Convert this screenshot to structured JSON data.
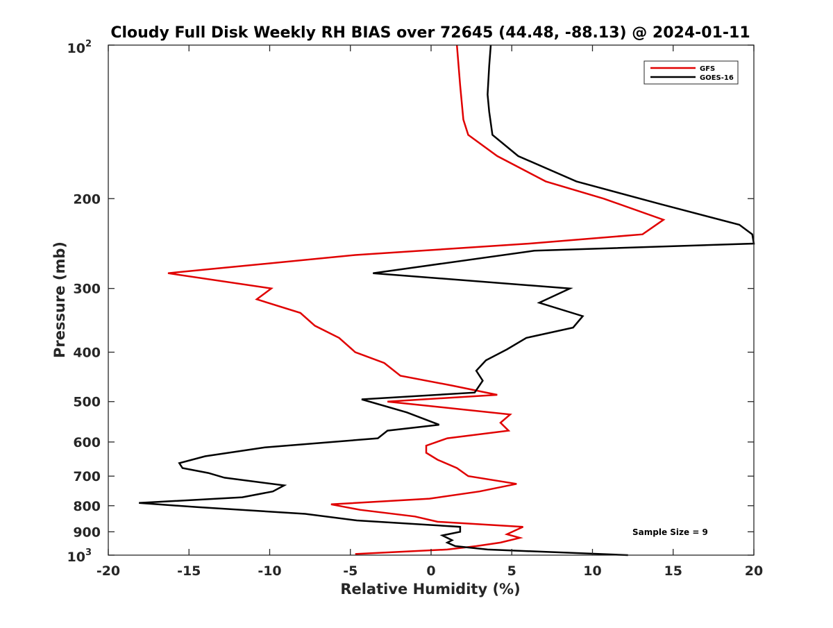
{
  "chart_data": {
    "type": "line",
    "title": "Cloudy Full Disk Weekly RH BIAS over 72645 (44.48, -88.13) @ 2024-01-11",
    "xlabel": "Relative Humidity (%)",
    "ylabel": "Pressure (mb)",
    "xlim": [
      -20,
      20
    ],
    "ylim": [
      100,
      1000
    ],
    "y_scale": "log",
    "y_reversed": true,
    "x_ticks": [
      -20,
      -15,
      -10,
      -5,
      0,
      5,
      10,
      15,
      20
    ],
    "x_tick_labels": [
      "-20",
      "-15",
      "-10",
      "-5",
      "0",
      "5",
      "10",
      "15",
      "20"
    ],
    "y_ticks": [
      200,
      300,
      400,
      500,
      600,
      700,
      800,
      900
    ],
    "y_tick_labels": [
      "200",
      "300",
      "400",
      "500",
      "600",
      "700",
      "800",
      "900"
    ],
    "y_end_labels": {
      "top": {
        "base": "10",
        "exp": "2"
      },
      "bottom": {
        "base": "10",
        "exp": "3"
      }
    },
    "grid": false,
    "legend": "top-right",
    "annotation": "Sample Size = 9",
    "series": [
      {
        "name": "GFS",
        "color": "#e00000",
        "x": [
          1.6,
          1.8,
          2.0,
          2.3,
          4.1,
          7.1,
          10.7,
          14.4,
          13.1,
          6.1,
          -4.7,
          -16.3,
          -9.9,
          -10.8,
          -8.1,
          -7.2,
          -5.7,
          -4.7,
          -2.9,
          -1.9,
          1.3,
          4.1,
          -2.7,
          4.9,
          4.3,
          4.8,
          1.0,
          -0.3,
          -0.3,
          0.4,
          1.6,
          2.3,
          5.3,
          3.0,
          -0.1,
          -6.2,
          -4.4,
          -1.0,
          0.4,
          5.7,
          4.7,
          5.5,
          4.3,
          2.8,
          1.0,
          -4.7
        ],
        "y": [
          100,
          120,
          140,
          150,
          165,
          185,
          200,
          220,
          235,
          245,
          258,
          280,
          300,
          315,
          335,
          355,
          375,
          400,
          420,
          445,
          465,
          485,
          500,
          530,
          550,
          570,
          590,
          610,
          630,
          650,
          675,
          700,
          725,
          750,
          775,
          795,
          815,
          840,
          860,
          880,
          910,
          925,
          945,
          960,
          975,
          995
        ]
      },
      {
        "name": "GOES-16",
        "color": "#000000",
        "x": [
          3.7,
          3.6,
          3.5,
          3.6,
          3.8,
          5.4,
          9.0,
          14.2,
          19.1,
          19.9,
          20.0,
          6.4,
          -3.6,
          8.6,
          6.7,
          9.4,
          8.8,
          5.9,
          4.7,
          3.4,
          2.8,
          3.2,
          2.7,
          -4.3,
          -1.5,
          0.5,
          -2.7,
          -3.3,
          -10.3,
          -14.0,
          -15.6,
          -15.4,
          -13.8,
          -12.8,
          -9.1,
          -9.8,
          -11.7,
          -18.1,
          -14.5,
          -7.8,
          -4.6,
          1.8,
          1.8,
          0.7,
          1.3,
          1.0,
          1.5,
          3.5,
          12.2
        ],
        "y": [
          100,
          110,
          125,
          135,
          150,
          165,
          185,
          205,
          225,
          235,
          245,
          253,
          280,
          300,
          320,
          340,
          358,
          375,
          395,
          415,
          435,
          455,
          480,
          495,
          525,
          555,
          570,
          590,
          615,
          640,
          660,
          675,
          690,
          705,
          730,
          750,
          770,
          790,
          805,
          830,
          855,
          880,
          900,
          915,
          935,
          945,
          960,
          975,
          1000
        ]
      }
    ]
  }
}
